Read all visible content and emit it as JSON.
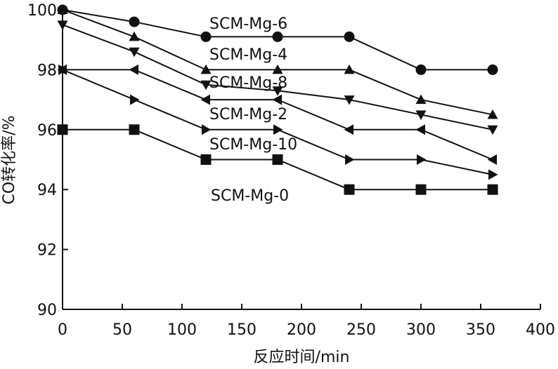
{
  "chart_data": {
    "type": "line",
    "xlabel": "反应时间/min",
    "ylabel": "CO转化率/%",
    "xlim": [
      0,
      400
    ],
    "ylim": [
      90,
      100
    ],
    "xticks": [
      0,
      50,
      100,
      150,
      200,
      250,
      300,
      350,
      400
    ],
    "yticks": [
      90,
      92,
      94,
      96,
      98,
      100
    ],
    "grid": false,
    "legend": "inline labels",
    "x": [
      0,
      60,
      120,
      180,
      240,
      300,
      360
    ],
    "series": [
      {
        "name": "SCM-Mg-6",
        "marker": "circle",
        "values": [
          100,
          99.6,
          99.1,
          99.1,
          99.1,
          98.0,
          98.0
        ]
      },
      {
        "name": "SCM-Mg-4",
        "marker": "triangle-up",
        "values": [
          100,
          99.1,
          98.0,
          98.0,
          98.0,
          97.0,
          96.5
        ]
      },
      {
        "name": "SCM-Mg-8",
        "marker": "triangle-down",
        "values": [
          99.5,
          98.6,
          97.5,
          97.3,
          97.0,
          96.5,
          96.0
        ]
      },
      {
        "name": "SCM-Mg-2",
        "marker": "triangle-left",
        "values": [
          98.0,
          98.0,
          97.0,
          97.0,
          96.0,
          96.0,
          95.0
        ]
      },
      {
        "name": "SCM-Mg-10",
        "marker": "triangle-right",
        "values": [
          98.0,
          97.0,
          96.0,
          96.0,
          95.0,
          95.0,
          94.5
        ]
      },
      {
        "name": "SCM-Mg-0",
        "marker": "square",
        "values": [
          96.0,
          96.0,
          95.0,
          95.0,
          94.0,
          94.0,
          94.0
        ]
      }
    ]
  }
}
